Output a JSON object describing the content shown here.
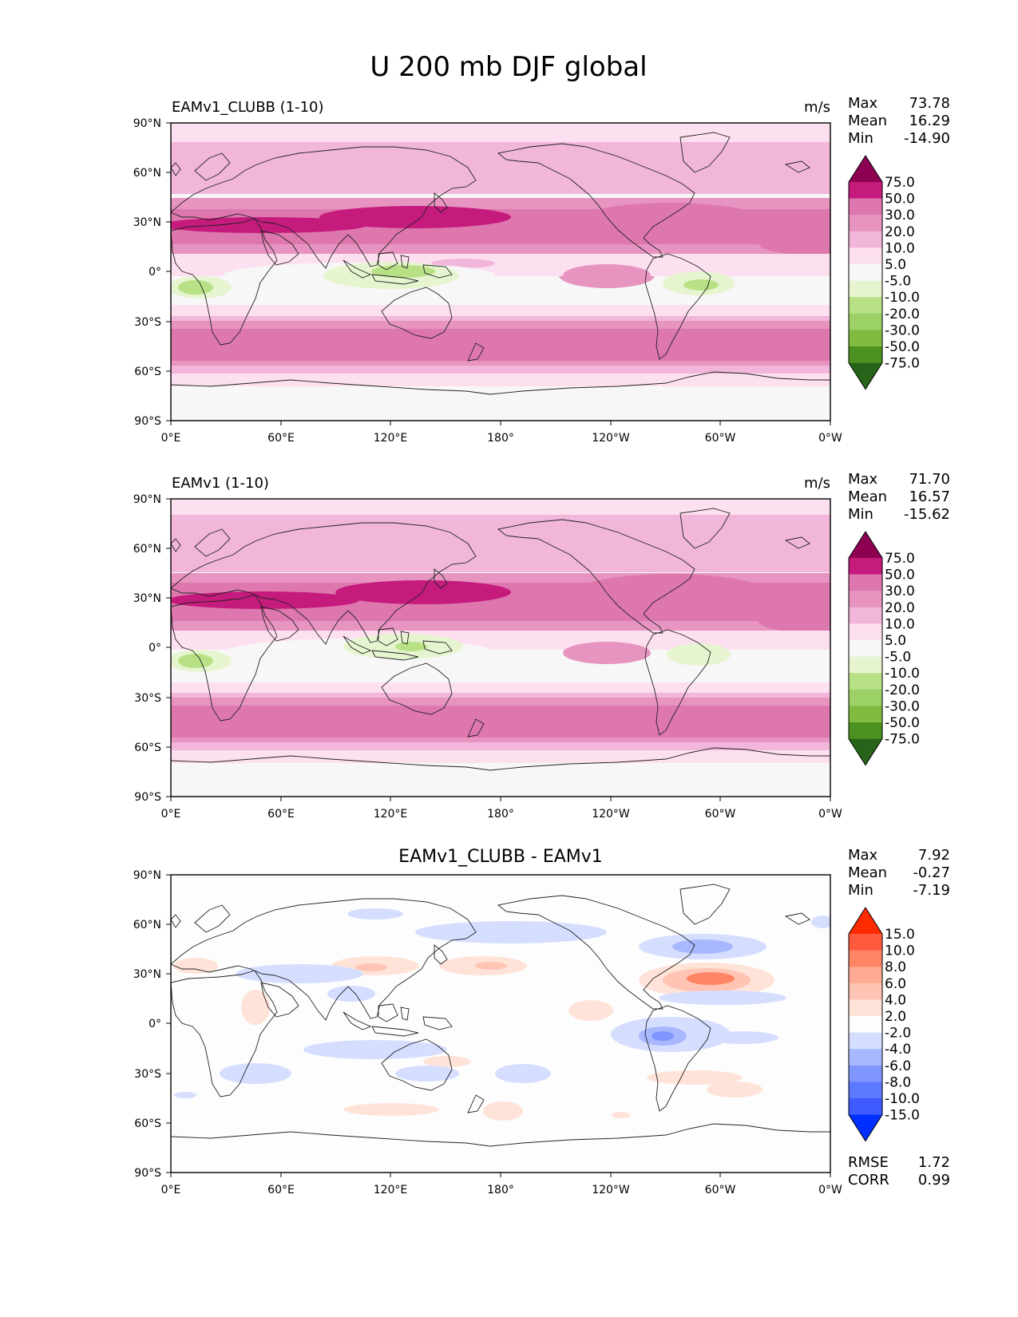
{
  "title": "U 200 mb DJF global",
  "lat_ticks": [
    "90°N",
    "60°N",
    "30°N",
    "0°",
    "30°S",
    "60°S",
    "90°S"
  ],
  "lon_ticks": [
    "0°E",
    "60°E",
    "120°E",
    "180°",
    "120°W",
    "60°W",
    "0°W"
  ],
  "panels": [
    {
      "id": "clubb",
      "left_title": "EAMv1_CLUBB (1-10)",
      "center_title": "",
      "units": "m/s",
      "stats": [
        {
          "label": "Max",
          "value": "73.78"
        },
        {
          "label": "Mean",
          "value": "16.29"
        },
        {
          "label": "Min",
          "value": "-14.90"
        }
      ],
      "colorbar_key": "mean",
      "metrics": []
    },
    {
      "id": "eamv1",
      "left_title": "EAMv1 (1-10)",
      "center_title": "",
      "units": "m/s",
      "stats": [
        {
          "label": "Max",
          "value": "71.70"
        },
        {
          "label": "Mean",
          "value": "16.57"
        },
        {
          "label": "Min",
          "value": "-15.62"
        }
      ],
      "colorbar_key": "mean",
      "metrics": []
    },
    {
      "id": "diff",
      "left_title": "",
      "center_title": "EAMv1_CLUBB - EAMv1",
      "units": "",
      "stats": [
        {
          "label": "Max",
          "value": "7.92"
        },
        {
          "label": "Mean",
          "value": "-0.27"
        },
        {
          "label": "Min",
          "value": "-7.19"
        }
      ],
      "colorbar_key": "diff",
      "metrics": [
        {
          "label": "RMSE",
          "value": "1.72"
        },
        {
          "label": "CORR",
          "value": "0.99"
        }
      ]
    }
  ],
  "colorbars": {
    "mean": {
      "labels": [
        "75.0",
        "50.0",
        "30.0",
        "20.0",
        "10.0",
        "5.0",
        "-5.0",
        "-10.0",
        "-20.0",
        "-30.0",
        "-50.0",
        "-75.0"
      ],
      "colors": [
        "#8e0152",
        "#c51b7d",
        "#de77ae",
        "#e794c1",
        "#f1b6da",
        "#fde0ef",
        "#f7f7f7",
        "#e6f5d0",
        "#b8e186",
        "#9bd166",
        "#7fbc41",
        "#4d9221",
        "#276419"
      ]
    },
    "diff": {
      "labels": [
        "15.0",
        "10.0",
        "8.0",
        "6.0",
        "4.0",
        "2.0",
        "-2.0",
        "-4.0",
        "-6.0",
        "-8.0",
        "-10.0",
        "-15.0"
      ],
      "colors": [
        "#ff2b00",
        "#ff5a3d",
        "#ff8566",
        "#ffab94",
        "#ffc4b3",
        "#ffe3d9",
        "#fdfdfd",
        "#d6deff",
        "#a8b8ff",
        "#8096ff",
        "#5c78ff",
        "#3d5aff",
        "#0030ff"
      ]
    }
  }
}
